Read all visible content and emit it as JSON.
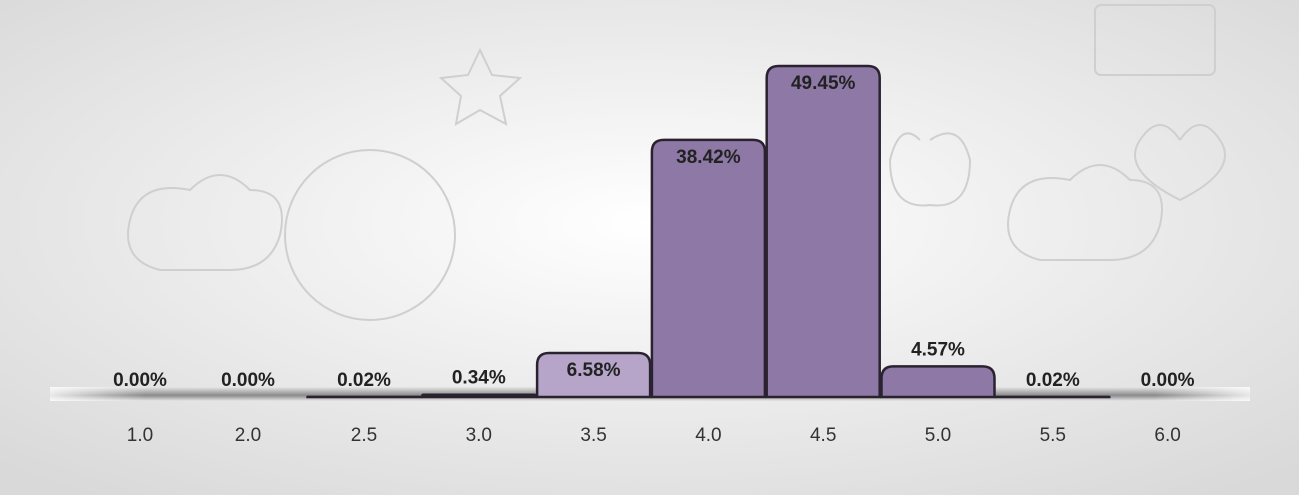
{
  "chart_data": {
    "type": "bar",
    "categories": [
      "1.0",
      "2.0",
      "2.5",
      "3.0",
      "3.5",
      "4.0",
      "4.5",
      "5.0",
      "5.5",
      "6.0"
    ],
    "values": [
      0,
      0,
      0.02,
      0.34,
      6.58,
      38.42,
      49.45,
      4.57,
      0.02,
      0
    ],
    "value_labels": [
      "0.00%",
      "0.00%",
      "0.02%",
      "0.34%",
      "6.58%",
      "38.42%",
      "49.45%",
      "4.57%",
      "0.02%",
      "0.00%"
    ],
    "colors": [
      "#8e78a6",
      "#8e78a6",
      "#8e78a6",
      "#9c88b3",
      "#b6a5c8",
      "#8e78a6",
      "#8e78a6",
      "#8e78a6",
      "#8e78a6",
      "#8e78a6"
    ]
  }
}
